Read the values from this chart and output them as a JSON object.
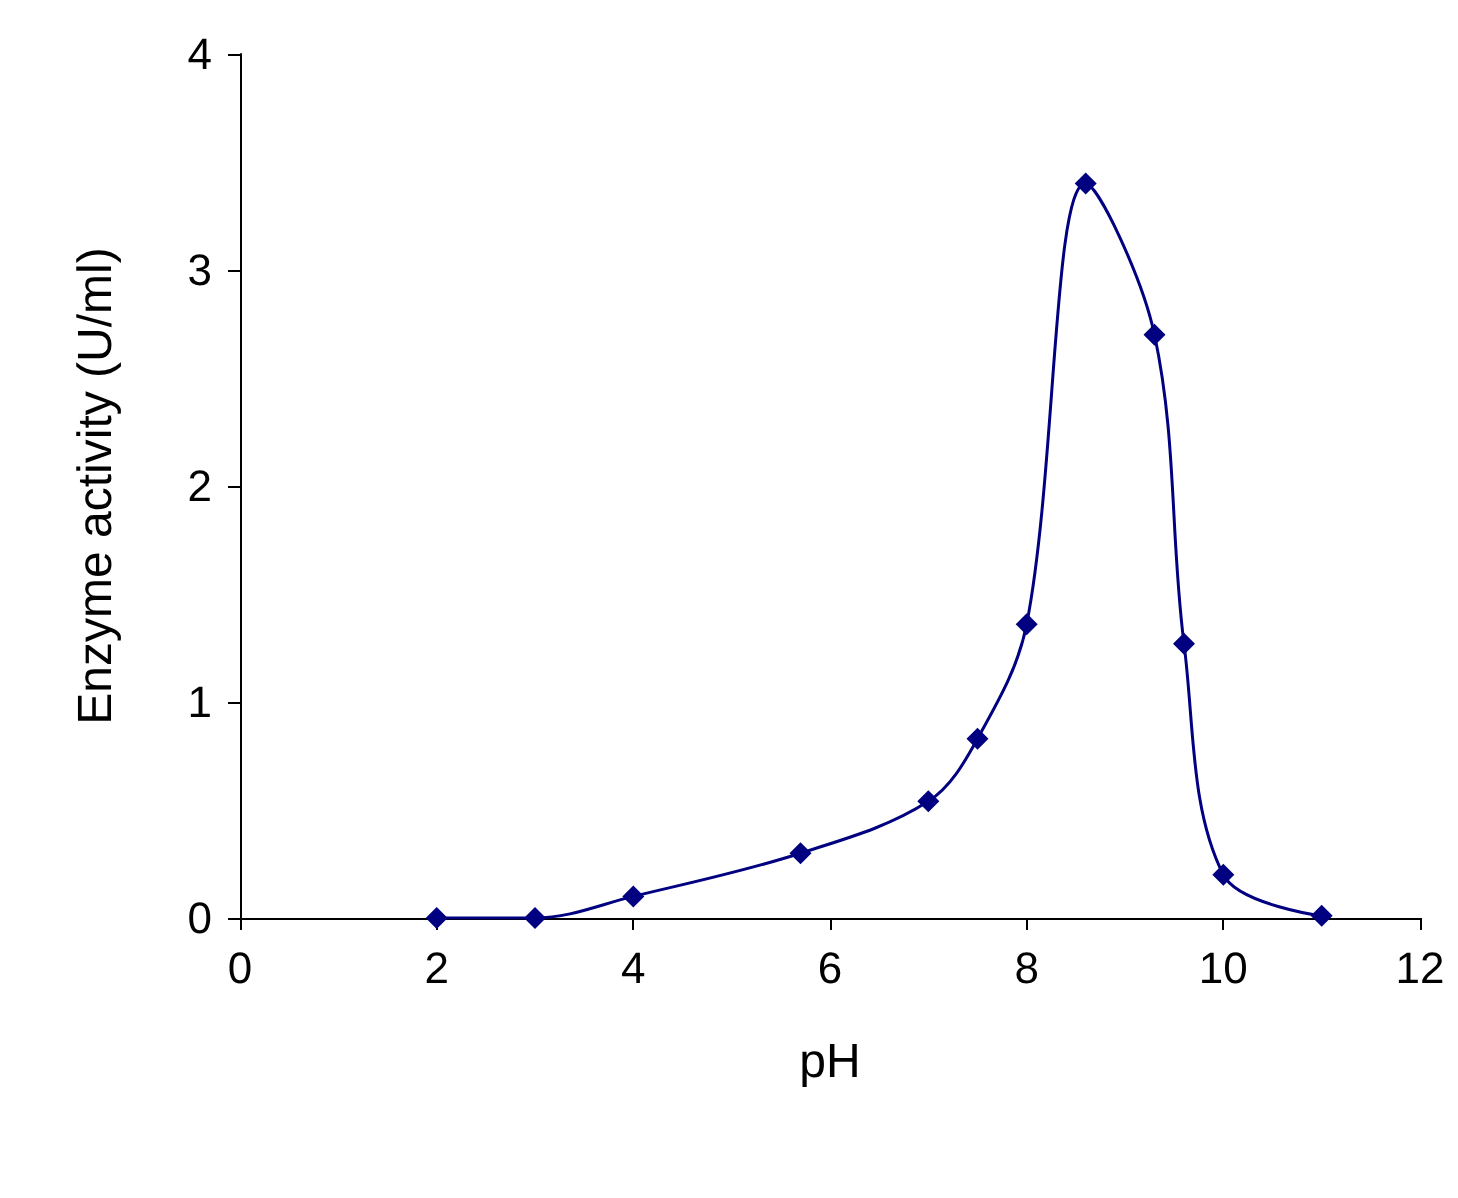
{
  "chart_data": {
    "type": "line",
    "xlabel": "pH",
    "ylabel": "Enzyme activity (U/ml)",
    "x": [
      2,
      3,
      4,
      5.7,
      7,
      7.5,
      8,
      8.6,
      9.3,
      9.6,
      10,
      11
    ],
    "series": [
      {
        "color": "#000080",
        "values": [
          0,
          0,
          0.1,
          0.3,
          0.54,
          0.83,
          1.36,
          3.4,
          2.7,
          1.27,
          0.2,
          0.01
        ]
      }
    ],
    "xlim": [
      0,
      12
    ],
    "xticks": [
      0,
      2,
      4,
      6,
      8,
      10,
      12
    ],
    "ylim": [
      0,
      4
    ],
    "yticks": [
      0,
      1,
      2,
      3,
      4
    ],
    "marker": "diamond",
    "line_style": "solid"
  }
}
